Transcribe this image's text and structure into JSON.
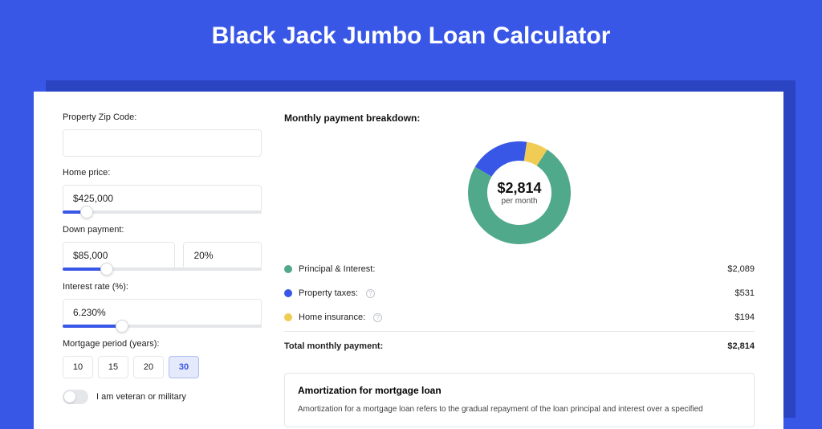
{
  "page": {
    "title": "Black Jack Jumbo Loan Calculator",
    "bg_color": "#3957e6",
    "card_bg": "#ffffff",
    "shadow_color": "#2a44c2"
  },
  "form": {
    "zip": {
      "label": "Property Zip Code:",
      "value": ""
    },
    "price": {
      "label": "Home price:",
      "value": "$425,000",
      "slider_pct": 12
    },
    "down": {
      "label": "Down payment:",
      "value": "$85,000",
      "pct": "20%",
      "slider_pct": 22
    },
    "rate": {
      "label": "Interest rate (%):",
      "value": "6.230%",
      "slider_pct": 30
    },
    "period": {
      "label": "Mortgage period (years):",
      "options": [
        "10",
        "15",
        "20",
        "30"
      ],
      "selected": "30"
    },
    "veteran": {
      "label": "I am veteran or military",
      "on": false
    }
  },
  "breakdown": {
    "title": "Monthly payment breakdown:",
    "donut": {
      "amount": "$2,814",
      "sub": "per month",
      "size": 128,
      "thickness": 24,
      "bg": "#ffffff",
      "segments": [
        {
          "color": "#51a98b",
          "value": 2089
        },
        {
          "color": "#3957e6",
          "value": 531
        },
        {
          "color": "#f0cc55",
          "value": 194
        }
      ]
    },
    "rows": [
      {
        "dot": "#51a98b",
        "label": "Principal & Interest:",
        "info": false,
        "amount": "$2,089"
      },
      {
        "dot": "#3957e6",
        "label": "Property taxes:",
        "info": true,
        "amount": "$531"
      },
      {
        "dot": "#f0cc55",
        "label": "Home insurance:",
        "info": true,
        "amount": "$194"
      }
    ],
    "total": {
      "label": "Total monthly payment:",
      "amount": "$2,814"
    }
  },
  "amort": {
    "title": "Amortization for mortgage loan",
    "body": "Amortization for a mortgage loan refers to the gradual repayment of the loan principal and interest over a specified"
  }
}
